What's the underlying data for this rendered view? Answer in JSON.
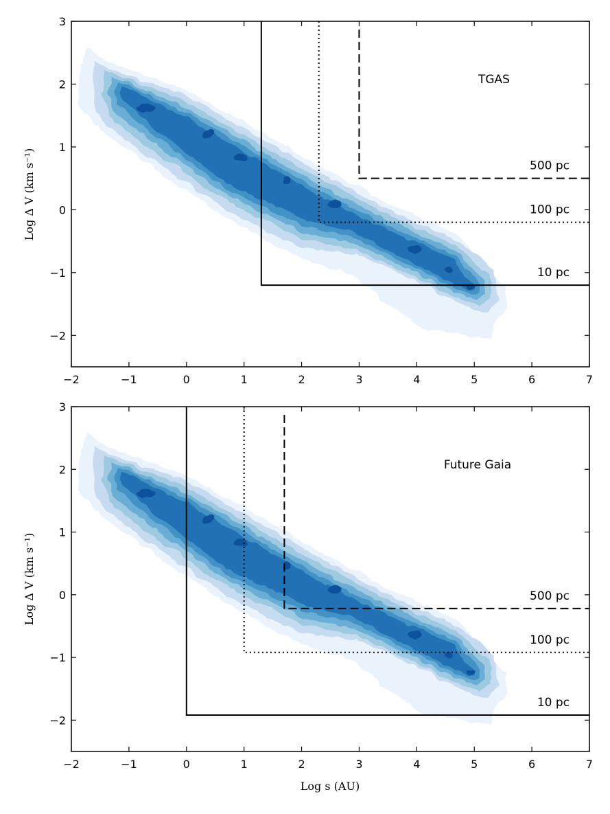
{
  "chart_data": [
    {
      "type": "contour",
      "panel": "top",
      "title": "TGAS",
      "xlabel": "",
      "ylabel": "Log Δ V (km s⁻¹)",
      "xlim": [
        -2,
        7
      ],
      "ylim": [
        -2.5,
        3
      ],
      "xticks": [
        -2,
        -1,
        0,
        1,
        2,
        3,
        4,
        5,
        6,
        7
      ],
      "xtick_labels": [
        "−2",
        "−1",
        "0",
        "1",
        "2",
        "3",
        "4",
        "5",
        "6",
        "7"
      ],
      "yticks": [
        -2,
        -1,
        0,
        1,
        2,
        3
      ],
      "ytick_labels": [
        "−2",
        "−1",
        "0",
        "1",
        "2",
        "3"
      ],
      "density_ridge": {
        "s": [
          -1.2,
          5.3
        ],
        "dv": [
          1.9,
          -1.35
        ]
      },
      "limits": [
        {
          "label": "10 pc",
          "style": "solid",
          "log_s": 1.3,
          "log_dv": -1.2
        },
        {
          "label": "100 pc",
          "style": "dotted",
          "log_s": 2.3,
          "log_dv": -0.2
        },
        {
          "label": "500 pc",
          "style": "dashed",
          "log_s": 3.0,
          "log_dv": 0.5
        }
      ]
    },
    {
      "type": "contour",
      "panel": "bottom",
      "title": "Future Gaia",
      "xlabel": "Log s (AU)",
      "ylabel": "Log Δ V (km s⁻¹)",
      "xlim": [
        -2,
        7
      ],
      "ylim": [
        -2.5,
        3
      ],
      "xticks": [
        -2,
        -1,
        0,
        1,
        2,
        3,
        4,
        5,
        6,
        7
      ],
      "xtick_labels": [
        "−2",
        "−1",
        "0",
        "1",
        "2",
        "3",
        "4",
        "5",
        "6",
        "7"
      ],
      "yticks": [
        -2,
        -1,
        0,
        1,
        2,
        3
      ],
      "ytick_labels": [
        "−2",
        "−1",
        "0",
        "1",
        "2",
        "3"
      ],
      "density_ridge": {
        "s": [
          -1.2,
          5.3
        ],
        "dv": [
          1.9,
          -1.35
        ]
      },
      "limits": [
        {
          "label": "10 pc",
          "style": "solid",
          "log_s": 0.0,
          "log_dv": -1.92
        },
        {
          "label": "100 pc",
          "style": "dotted",
          "log_s": 1.0,
          "log_dv": -0.92
        },
        {
          "label": "500 pc",
          "style": "dashed",
          "log_s": 1.7,
          "log_dv": -0.22
        }
      ]
    }
  ],
  "colors": {
    "contour_levels": [
      "#eaf2fb",
      "#c6dbef",
      "#9ecae1",
      "#6baed6",
      "#4292c6",
      "#2171b5",
      "#08519c"
    ],
    "lines": "#000000"
  }
}
